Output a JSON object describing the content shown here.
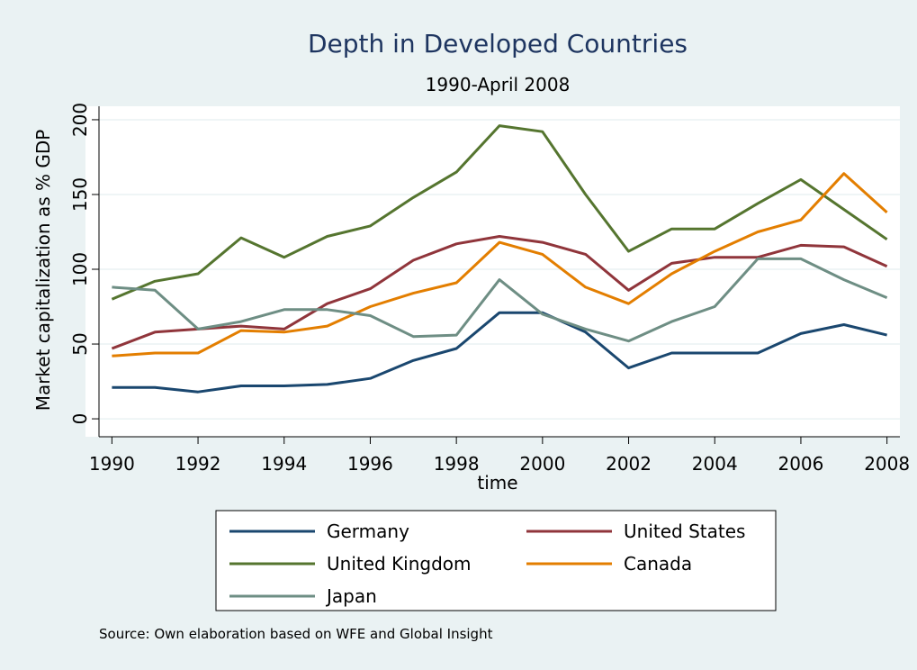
{
  "chart_data": {
    "type": "line",
    "title": "Depth in Developed Countries",
    "subtitle": "1990-April 2008",
    "y_label": "Market capitalization as % GDP",
    "x_label": "time",
    "source": "Source: Own elaboration based on WFE and Global Insight",
    "x": [
      1990,
      1991,
      1992,
      1993,
      1994,
      1995,
      1996,
      1997,
      1998,
      1999,
      2000,
      2001,
      2002,
      2003,
      2004,
      2005,
      2006,
      2007,
      2008
    ],
    "series": [
      {
        "name": "Germany",
        "color": "#1a476f",
        "values": [
          21,
          21,
          18,
          22,
          22,
          23,
          27,
          39,
          47,
          71,
          71,
          58,
          34,
          44,
          44,
          44,
          57,
          63,
          56
        ]
      },
      {
        "name": "United States",
        "color": "#90353b",
        "values": [
          47,
          58,
          60,
          62,
          60,
          77,
          87,
          106,
          117,
          122,
          118,
          110,
          86,
          104,
          108,
          108,
          116,
          115,
          102
        ]
      },
      {
        "name": "United Kingdom",
        "color": "#55752f",
        "values": [
          80,
          92,
          97,
          121,
          108,
          122,
          129,
          148,
          165,
          196,
          192,
          150,
          112,
          127,
          127,
          144,
          160,
          140,
          120
        ]
      },
      {
        "name": "Canada",
        "color": "#e37e00",
        "values": [
          42,
          44,
          44,
          59,
          58,
          62,
          75,
          84,
          91,
          118,
          110,
          88,
          77,
          97,
          112,
          125,
          133,
          164,
          138
        ]
      },
      {
        "name": "Japan",
        "color": "#6e8e84",
        "values": [
          88,
          86,
          60,
          65,
          73,
          73,
          69,
          55,
          56,
          93,
          70,
          60,
          52,
          65,
          75,
          107,
          107,
          93,
          81
        ]
      }
    ],
    "xlim": [
      1989.7,
      2008.3
    ],
    "xticks": [
      1990,
      1992,
      1994,
      1996,
      1998,
      2000,
      2002,
      2004,
      2006,
      2008
    ],
    "ylim": [
      -12,
      209
    ],
    "yticks": [
      0,
      50,
      100,
      150,
      200
    ],
    "grid": true,
    "legend": "bottom"
  }
}
